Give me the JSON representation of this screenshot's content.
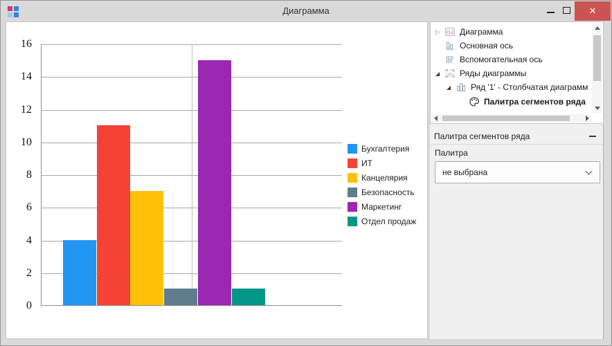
{
  "window": {
    "title": "Диаграмма",
    "app_icon_colors": [
      "#d13a6a",
      "#3486d8",
      "#a3c6e9",
      "#3486d8"
    ],
    "controls": {
      "minimize": "minimize",
      "maximize": "maximize",
      "close_glyph": "✕"
    }
  },
  "chart_data": {
    "type": "bar",
    "title": "",
    "categories": [
      "Бухгалтерия",
      "ИТ",
      "Канцелярия",
      "Безопасность",
      "Маркетинг",
      "Отдел продаж"
    ],
    "values": [
      4,
      11,
      7,
      1,
      15,
      1
    ],
    "colors": [
      "#2196f3",
      "#f44336",
      "#ffc107",
      "#607d8b",
      "#9c27b0",
      "#009688"
    ],
    "xlabel": "",
    "ylabel": "",
    "ylim": [
      0,
      16
    ],
    "ytick_step": 2,
    "grid": true,
    "legend_position": "right"
  },
  "tree": {
    "items": [
      {
        "label": "Диаграмма",
        "icon": "chart-thumbnail-icon",
        "expander": "collapsed",
        "indent": 0,
        "bold": false
      },
      {
        "label": "Основная ось",
        "icon": "primary-axis-icon",
        "expander": "none",
        "indent": 0,
        "bold": false
      },
      {
        "label": "Вспомогательная ось",
        "icon": "secondary-axis-icon",
        "expander": "none",
        "indent": 0,
        "bold": false
      },
      {
        "label": "Ряды диаграммы",
        "icon": "series-group-icon",
        "expander": "expanded",
        "indent": 0,
        "bold": false
      },
      {
        "label": "Ряд '1' - Столбчатая диаграмм",
        "icon": "column-series-icon",
        "expander": "expanded",
        "indent": 1,
        "bold": false
      },
      {
        "label": "Палитра сегментов ряда",
        "icon": "palette-icon",
        "expander": "none",
        "indent": 2,
        "bold": true
      }
    ]
  },
  "properties_panel": {
    "header": "Палитра сегментов ряда",
    "field_label": "Палитра",
    "dropdown_value": "не выбрана"
  }
}
